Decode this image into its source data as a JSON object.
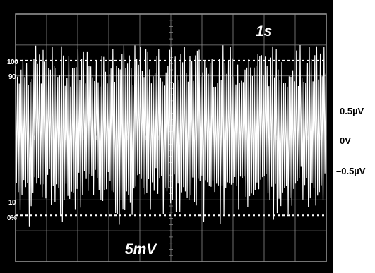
{
  "screen": {
    "time_per_div": "1s",
    "volts_per_div": "5mV",
    "percent_labels": {
      "p100": "100",
      "p90": "90",
      "p10": "10",
      "p0": "0%"
    }
  },
  "scale_labels": {
    "top": "0.5µV",
    "center": "0V",
    "bottom": "–0.5µV"
  },
  "colors": {
    "screen": "#000000",
    "trace": "#ffffff",
    "grid": "#8a8a8a",
    "labels": "#000000"
  },
  "chart_data": {
    "type": "line",
    "description": "oscilloscope noise trace",
    "title": "",
    "xlabel": "",
    "ylabel": "",
    "x_divisions": 10,
    "y_divisions": 8,
    "ylim": [
      -0.6,
      0.6
    ],
    "trace_band_uV": [
      -0.45,
      0.45
    ],
    "grid": true
  }
}
